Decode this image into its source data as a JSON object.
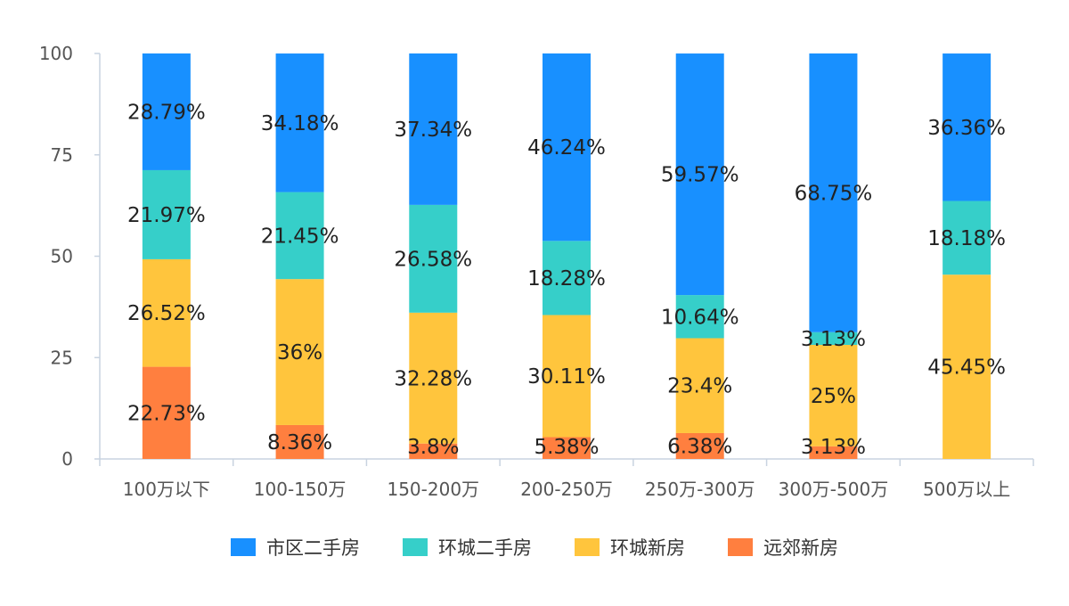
{
  "chart_data": {
    "type": "bar",
    "stacked": true,
    "categories": [
      "100万以下",
      "100-150万",
      "150-200万",
      "200-250万",
      "250万-300万",
      "300万-500万",
      "500万以上"
    ],
    "series": [
      {
        "name": "远郊新房",
        "color": "#FF7F3F",
        "values": [
          22.73,
          8.36,
          3.8,
          5.38,
          6.38,
          3.13,
          0
        ],
        "labels": [
          "22.73%",
          "8.36%",
          "3.8%",
          "5.38%",
          "6.38%",
          "3.13%",
          ""
        ]
      },
      {
        "name": "环城新房",
        "color": "#FFC53D",
        "values": [
          26.52,
          36,
          32.28,
          30.11,
          23.4,
          25,
          45.45
        ],
        "labels": [
          "26.52%",
          "36%",
          "32.28%",
          "30.11%",
          "23.4%",
          "25%",
          "45.45%"
        ]
      },
      {
        "name": "环城二手房",
        "color": "#36CFC9",
        "values": [
          21.97,
          21.45,
          26.58,
          18.28,
          10.64,
          3.13,
          18.18
        ],
        "labels": [
          "21.97%",
          "21.45%",
          "26.58%",
          "18.28%",
          "10.64%",
          "3.13%",
          "18.18%"
        ]
      },
      {
        "name": "市区二手房",
        "color": "#1890FF",
        "values": [
          28.79,
          34.18,
          37.34,
          46.24,
          59.57,
          68.75,
          36.36
        ],
        "labels": [
          "28.79%",
          "34.18%",
          "37.34%",
          "46.24%",
          "59.57%",
          "68.75%",
          "36.36%"
        ]
      }
    ],
    "legend_order": [
      "市区二手房",
      "环城二手房",
      "环城新房",
      "远郊新房"
    ],
    "ylim": [
      0,
      100
    ],
    "yticks": [
      0,
      25,
      50,
      75,
      100
    ],
    "yticks_labels": [
      "0",
      "25",
      "50",
      "75",
      "100"
    ],
    "legend_position": "bottom",
    "grid": false
  }
}
